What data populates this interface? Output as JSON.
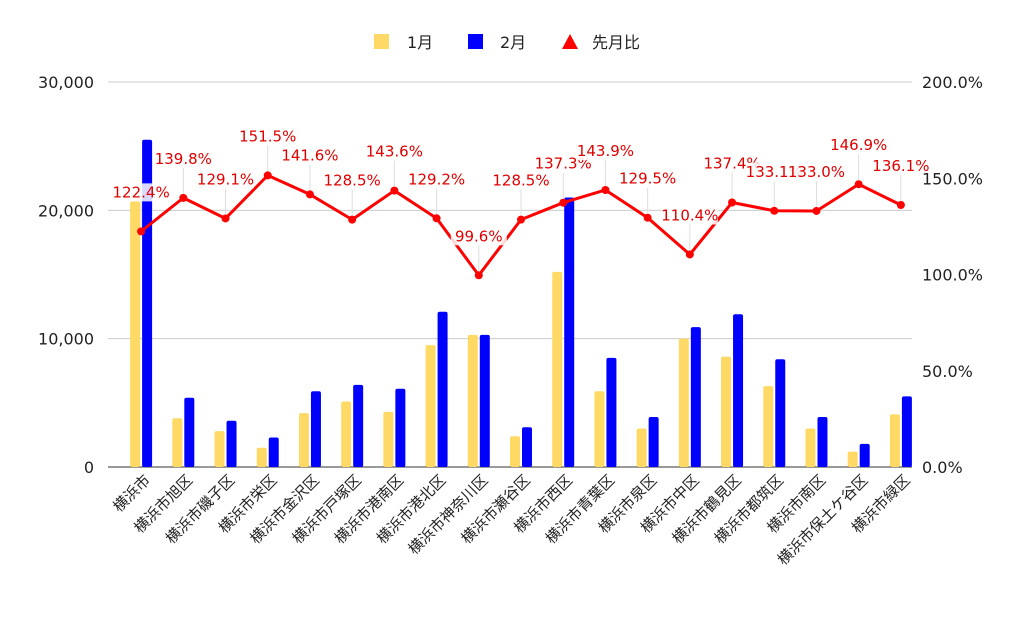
{
  "chart_data": {
    "type": "bar",
    "categories": [
      "横浜市",
      "横浜市旭区",
      "横浜市磯子区",
      "横浜市栄区",
      "横浜市金沢区",
      "横浜市戸塚区",
      "横浜市港南区",
      "横浜市港北区",
      "横浜市神奈川区",
      "横浜市瀬谷区",
      "横浜市西区",
      "横浜市青葉区",
      "横浜市泉区",
      "横浜市中区",
      "横浜市鶴見区",
      "横浜市都筑区",
      "横浜市南区",
      "横浜市保土ケ谷区",
      "横浜市緑区"
    ],
    "series": [
      {
        "name": "1月",
        "type": "bar",
        "axis": "left",
        "color": "#ffd966",
        "values": [
          20700,
          3800,
          2800,
          1500,
          4200,
          5100,
          4300,
          9500,
          10300,
          2400,
          15200,
          5900,
          3000,
          10000,
          8600,
          6300,
          3000,
          1200,
          4100
        ]
      },
      {
        "name": "2月",
        "type": "bar",
        "axis": "left",
        "color": "#0000ff",
        "values": [
          25500,
          5400,
          3600,
          2300,
          5900,
          6400,
          6100,
          12100,
          10300,
          3100,
          21000,
          8500,
          3900,
          10900,
          11900,
          8400,
          3900,
          1800,
          5500
        ]
      },
      {
        "name": "先月比",
        "type": "line",
        "axis": "right",
        "color": "#ff0000",
        "values": [
          122.4,
          139.8,
          129.1,
          151.5,
          141.6,
          128.5,
          143.6,
          129.2,
          99.6,
          128.5,
          137.3,
          143.9,
          129.5,
          110.4,
          137.4,
          133.1,
          133.0,
          146.9,
          136.1
        ],
        "labels": [
          "122.4%",
          "139.8%",
          "129.1%",
          "151.5%",
          "141.6%",
          "128.5%",
          "143.6%",
          "129.2%",
          "99.6%",
          "128.5%",
          "137.3%",
          "143.9%",
          "129.5%",
          "110.4%",
          "137.4%",
          "133.1%",
          "133.0%",
          "146.9%",
          "136.1%"
        ]
      }
    ],
    "y_left": {
      "min": 0,
      "max": 30000,
      "ticks": [
        "0",
        "10,000",
        "20,000",
        "30,000"
      ],
      "tick_values": [
        0,
        10000,
        20000,
        30000
      ]
    },
    "y_right": {
      "min": 0,
      "max": 200,
      "ticks": [
        "0.0%",
        "50.0%",
        "100.0%",
        "150.0%",
        "200.0%"
      ],
      "tick_values": [
        0,
        50,
        100,
        150,
        200
      ]
    },
    "grid": true,
    "legend_position": "top-center"
  }
}
